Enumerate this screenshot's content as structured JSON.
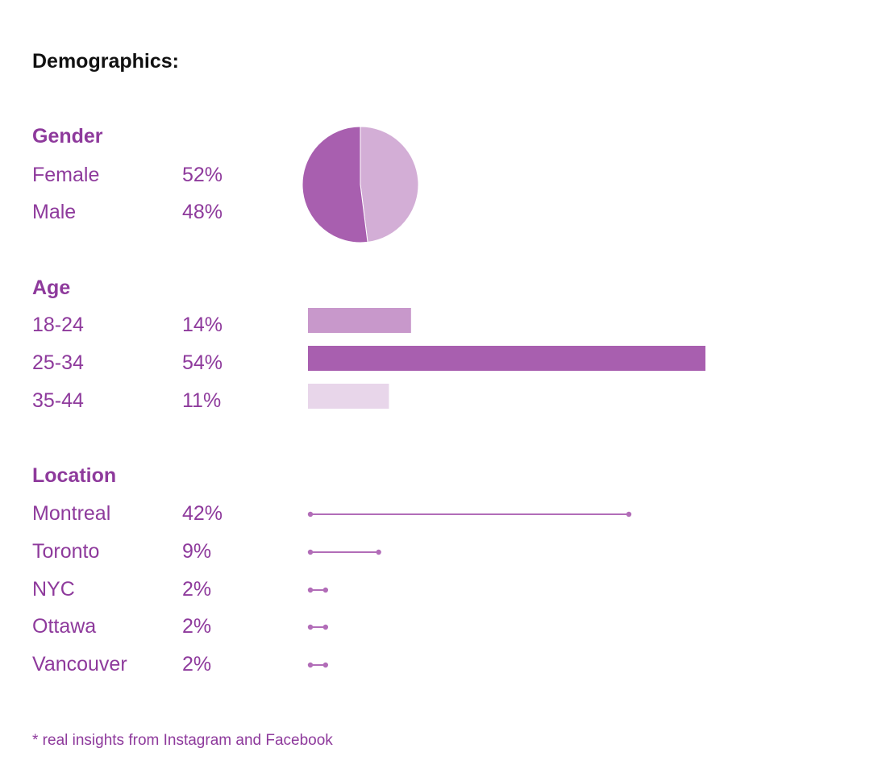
{
  "page_title": "Demographics:",
  "footnote": "* real insights from Instagram and Facebook",
  "colors": {
    "text_accent": "#8e3a9c",
    "pie_dark": "#a85faf",
    "pie_light": "#d3aed6",
    "bar_18_24": "#c898cb",
    "bar_25_34": "#a85faf",
    "bar_35_44": "#e8d6ea",
    "line": "#b26db8"
  },
  "chart_data": [
    {
      "type": "pie",
      "title": "Gender",
      "categories": [
        "Female",
        "Male"
      ],
      "values": [
        52,
        48
      ],
      "labels": [
        "52%",
        "48%"
      ]
    },
    {
      "type": "bar",
      "title": "Age",
      "categories": [
        "18-24",
        "25-34",
        "35-44"
      ],
      "values": [
        14,
        54,
        11
      ],
      "labels": [
        "14%",
        "54%",
        "11%"
      ]
    },
    {
      "type": "line",
      "title": "Location",
      "categories": [
        "Montreal",
        "Toronto",
        "NYC",
        "Ottawa",
        "Vancouver"
      ],
      "values": [
        42,
        9,
        2,
        2,
        2
      ],
      "labels": [
        "42%",
        "9%",
        "2%",
        "2%",
        "2%"
      ]
    }
  ]
}
